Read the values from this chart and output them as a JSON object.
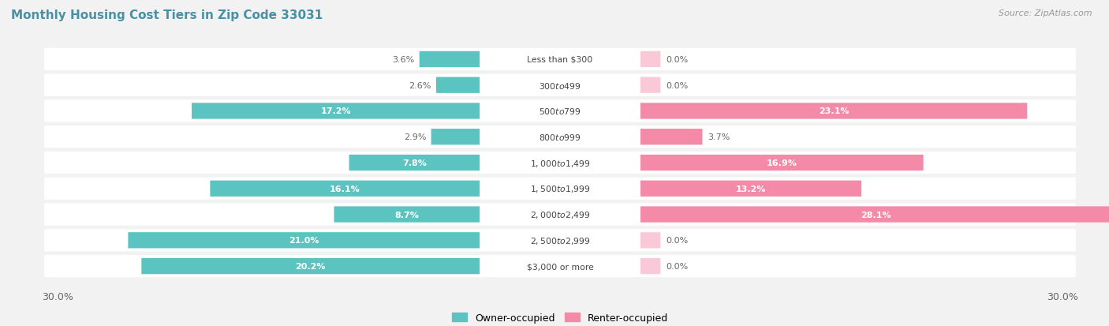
{
  "title": "Monthly Housing Cost Tiers in Zip Code 33031",
  "source": "Source: ZipAtlas.com",
  "categories": [
    "Less than $300",
    "$300 to $499",
    "$500 to $799",
    "$800 to $999",
    "$1,000 to $1,499",
    "$1,500 to $1,999",
    "$2,000 to $2,499",
    "$2,500 to $2,999",
    "$3,000 or more"
  ],
  "owner_values": [
    3.6,
    2.6,
    17.2,
    2.9,
    7.8,
    16.1,
    8.7,
    21.0,
    20.2
  ],
  "renter_values": [
    0.0,
    0.0,
    23.1,
    3.7,
    16.9,
    13.2,
    28.1,
    0.0,
    0.0
  ],
  "owner_color": "#5bc4c0",
  "renter_color": "#f589a8",
  "bg_color": "#f2f2f2",
  "row_bg_even": "#ffffff",
  "row_bg_odd": "#f7f7f7",
  "title_color": "#4a90a4",
  "source_color": "#999999",
  "label_color_inside": "#ffffff",
  "label_color_outside": "#666666",
  "axis_limit": 30.0
}
